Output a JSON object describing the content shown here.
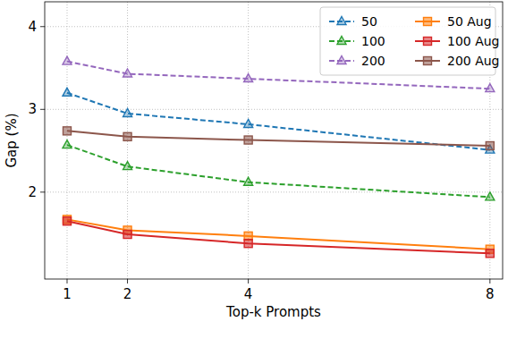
{
  "chart_data": {
    "type": "line",
    "x_label": "Top-k Prompts",
    "y_label": "Gap (%)",
    "x": [
      1,
      2,
      4,
      8
    ],
    "xlim": [
      0.63,
      8.21
    ],
    "xticks": [
      1,
      2,
      4,
      8
    ],
    "ylim": [
      0.95,
      4.3
    ],
    "yticks": [
      2,
      3,
      4
    ],
    "grid": true,
    "legend": "upper-right",
    "series": [
      {
        "name": "50",
        "color": "#1f77b4",
        "marker": "triangle",
        "line_style": "dashed",
        "values": [
          3.2,
          2.95,
          2.82,
          2.51
        ]
      },
      {
        "name": "100",
        "color": "#2ca02c",
        "marker": "triangle",
        "line_style": "dashed",
        "values": [
          2.57,
          2.31,
          2.12,
          1.94
        ]
      },
      {
        "name": "200",
        "color": "#9467bd",
        "marker": "triangle",
        "line_style": "dashed",
        "values": [
          3.58,
          3.43,
          3.37,
          3.25
        ]
      },
      {
        "name": "50 Aug",
        "color": "#ff7f0e",
        "marker": "square",
        "line_style": "solid",
        "values": [
          1.67,
          1.54,
          1.47,
          1.31
        ]
      },
      {
        "name": "100 Aug",
        "color": "#d62728",
        "marker": "square",
        "line_style": "solid",
        "values": [
          1.65,
          1.49,
          1.38,
          1.26
        ]
      },
      {
        "name": "200 Aug",
        "color": "#8c564b",
        "marker": "square",
        "line_style": "solid",
        "values": [
          2.74,
          2.67,
          2.63,
          2.56
        ]
      }
    ]
  }
}
